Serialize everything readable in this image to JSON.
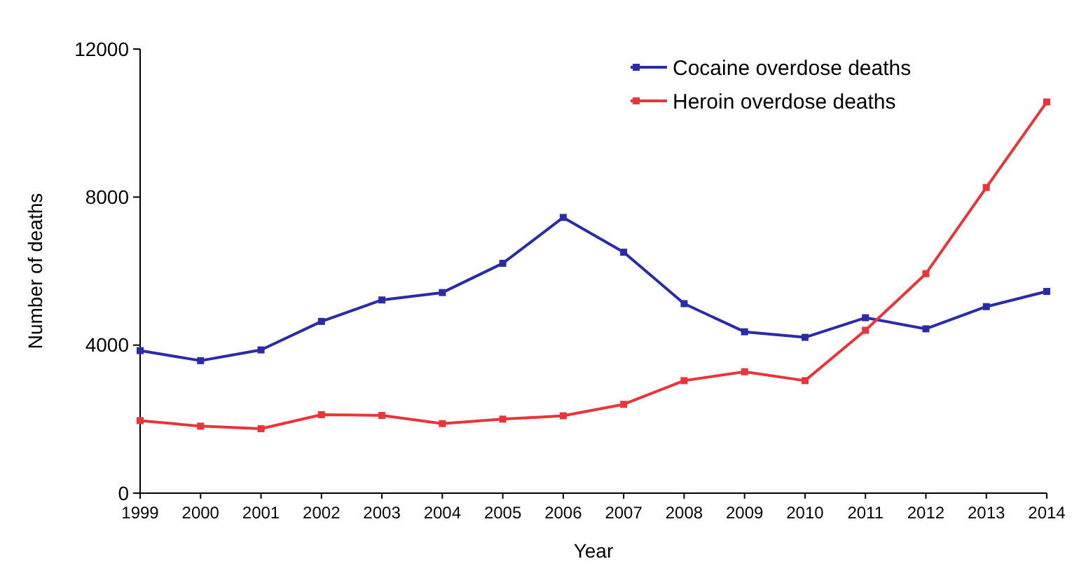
{
  "chart_data": {
    "type": "line",
    "xlabel": "Year",
    "ylabel": "Number of deaths",
    "categories": [
      "1999",
      "2000",
      "2001",
      "2002",
      "2003",
      "2004",
      "2005",
      "2006",
      "2007",
      "2008",
      "2009",
      "2010",
      "2011",
      "2012",
      "2013",
      "2014"
    ],
    "series": [
      {
        "name": "Cocaine overdose deaths",
        "color": "#2b2ba8",
        "values": [
          3850,
          3580,
          3870,
          4640,
          5220,
          5420,
          6210,
          7450,
          6510,
          5120,
          4360,
          4210,
          4740,
          4440,
          5040,
          5450
        ]
      },
      {
        "name": "Heroin overdose deaths",
        "color": "#e8353a",
        "values": [
          1960,
          1810,
          1740,
          2120,
          2100,
          1880,
          2000,
          2090,
          2400,
          3040,
          3280,
          3040,
          4400,
          5930,
          8260,
          10570
        ]
      }
    ],
    "ylim": [
      0,
      12000
    ],
    "yticks": [
      0,
      4000,
      8000,
      12000
    ],
    "grid": false,
    "legend": "top right",
    "marker": "square",
    "line_style": "solid"
  }
}
